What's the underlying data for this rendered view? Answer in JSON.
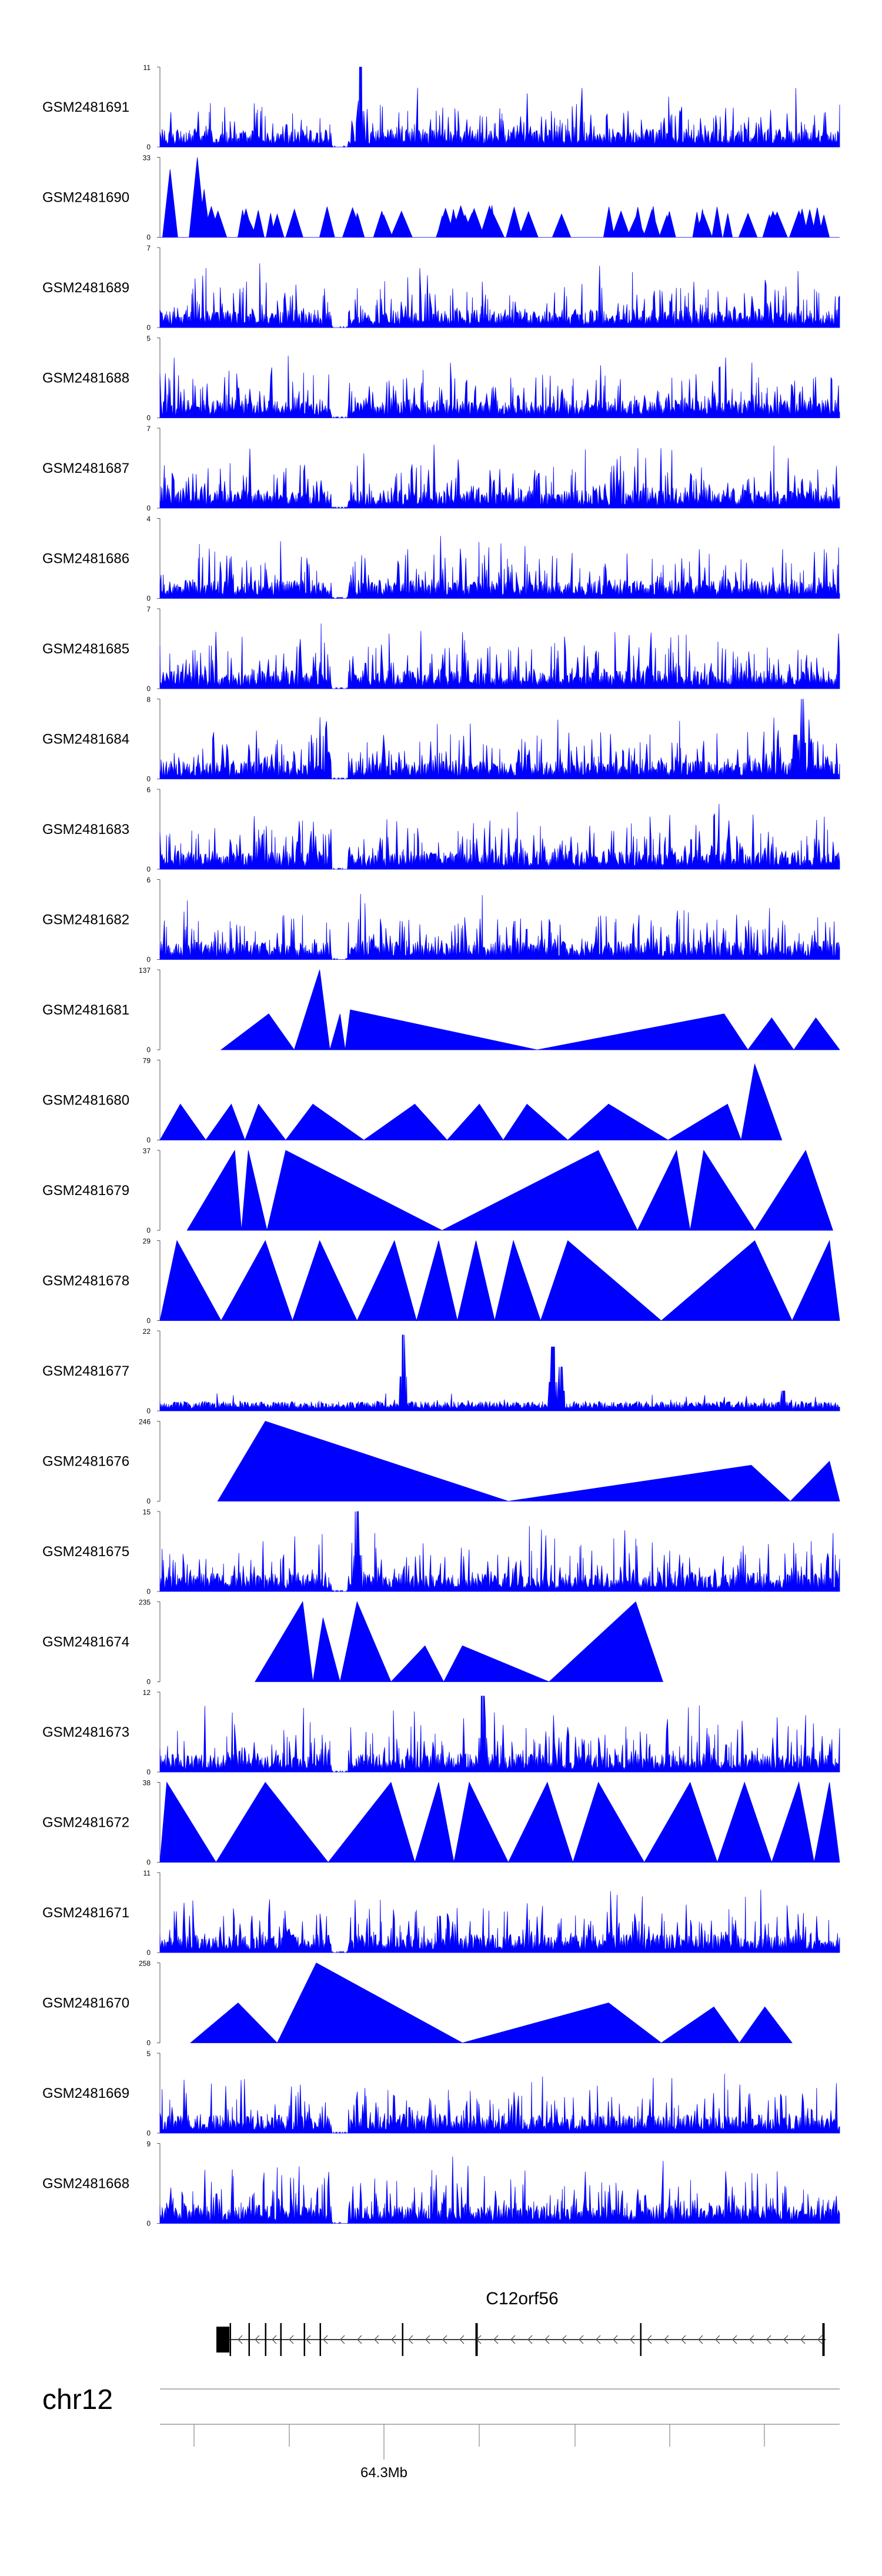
{
  "chart_data": {
    "type": "area",
    "description_free": true,
    "color": "#0000ff",
    "ymin_label": "0",
    "tracks": [
      {
        "name": "GSM2481691",
        "ymax": "11",
        "seed": 101,
        "style": "dense",
        "gap": 0.265,
        "peaks": [
          [
            0.295,
            1.0
          ]
        ]
      },
      {
        "name": "GSM2481690",
        "ymax": "33",
        "seed": 102,
        "style": "sparse",
        "peaks": [
          [
            0.015,
            0.85
          ],
          [
            0.055,
            1.0
          ],
          [
            0.065,
            0.6
          ]
        ]
      },
      {
        "name": "GSM2481689",
        "ymax": "7",
        "seed": 103,
        "style": "dense",
        "gap": 0.265,
        "peaks": []
      },
      {
        "name": "GSM2481688",
        "ymax": "5",
        "seed": 104,
        "style": "dense",
        "gap": 0.265,
        "peaks": []
      },
      {
        "name": "GSM2481687",
        "ymax": "7",
        "seed": 105,
        "style": "dense",
        "gap": 0.265,
        "peaks": []
      },
      {
        "name": "GSM2481686",
        "ymax": "4",
        "seed": 106,
        "style": "dense",
        "gap": 0.265,
        "peaks": []
      },
      {
        "name": "GSM2481685",
        "ymax": "7",
        "seed": 107,
        "style": "dense",
        "gap": 0.265,
        "peaks": []
      },
      {
        "name": "GSM2481684",
        "ymax": "8",
        "seed": 108,
        "style": "dense",
        "gap": 0.265,
        "peaks": [
          [
            0.945,
            1.0
          ],
          [
            0.935,
            0.55
          ]
        ]
      },
      {
        "name": "GSM2481683",
        "ymax": "6",
        "seed": 109,
        "style": "dense",
        "gap": 0.265,
        "peaks": []
      },
      {
        "name": "GSM2481682",
        "ymax": "6",
        "seed": 110,
        "style": "dense",
        "gap": 0.265,
        "peaks": []
      },
      {
        "name": "GSM2481681",
        "ymax": "137",
        "seed": 111,
        "style": "tri",
        "peaks": [
          [
            0.16,
            0.45
          ],
          [
            0.265,
            0.45
          ],
          [
            0.235,
            1.0
          ],
          [
            0.28,
            0.5
          ],
          [
            0.83,
            0.45
          ],
          [
            0.9,
            0.4
          ],
          [
            0.965,
            0.4
          ]
        ]
      },
      {
        "name": "GSM2481680",
        "ymax": "79",
        "seed": 112,
        "style": "tri",
        "peaks": [
          [
            0.03,
            0.45
          ],
          [
            0.105,
            0.45
          ],
          [
            0.145,
            0.45
          ],
          [
            0.225,
            0.45
          ],
          [
            0.375,
            0.45
          ],
          [
            0.47,
            0.45
          ],
          [
            0.54,
            0.45
          ],
          [
            0.66,
            0.45
          ],
          [
            0.835,
            0.45
          ],
          [
            0.875,
            0.95
          ]
        ]
      },
      {
        "name": "GSM2481679",
        "ymax": "37",
        "seed": 113,
        "style": "tri",
        "peaks": [
          [
            0.11,
            1.0
          ],
          [
            0.13,
            1.0
          ],
          [
            0.185,
            1.0
          ],
          [
            0.645,
            1.0
          ],
          [
            0.76,
            1.0
          ],
          [
            0.8,
            1.0
          ],
          [
            0.95,
            1.0
          ]
        ]
      },
      {
        "name": "GSM2481678",
        "ymax": "29",
        "seed": 114,
        "style": "tri",
        "peaks": [
          [
            0.025,
            1.0
          ],
          [
            0.155,
            1.0
          ],
          [
            0.235,
            1.0
          ],
          [
            0.345,
            1.0
          ],
          [
            0.41,
            1.0
          ],
          [
            0.465,
            1.0
          ],
          [
            0.52,
            1.0
          ],
          [
            0.6,
            1.0
          ],
          [
            0.875,
            1.0
          ],
          [
            0.985,
            1.0
          ]
        ]
      },
      {
        "name": "GSM2481677",
        "ymax": "22",
        "seed": 115,
        "style": "dense_low",
        "gap": 0.0,
        "peaks": [
          [
            0.358,
            0.95
          ],
          [
            0.578,
            0.8
          ],
          [
            0.59,
            0.55
          ],
          [
            0.917,
            0.25
          ]
        ]
      },
      {
        "name": "GSM2481676",
        "ymax": "246",
        "seed": 116,
        "style": "tri",
        "peaks": [
          [
            0.155,
            1.0
          ],
          [
            0.87,
            0.45
          ],
          [
            0.985,
            0.5
          ]
        ]
      },
      {
        "name": "GSM2481675",
        "ymax": "15",
        "seed": 117,
        "style": "dense",
        "gap": 0.265,
        "peaks": [
          [
            0.29,
            1.0
          ]
        ]
      },
      {
        "name": "GSM2481674",
        "ymax": "235",
        "seed": 118,
        "style": "tri",
        "peaks": [
          [
            0.21,
            1.0
          ],
          [
            0.24,
            0.8
          ],
          [
            0.29,
            1.0
          ],
          [
            0.39,
            0.45
          ],
          [
            0.445,
            0.45
          ],
          [
            0.7,
            1.0
          ]
        ]
      },
      {
        "name": "GSM2481673",
        "ymax": "12",
        "seed": 119,
        "style": "dense",
        "gap": 0.265,
        "peaks": [
          [
            0.475,
            0.95
          ]
        ]
      },
      {
        "name": "GSM2481672",
        "ymax": "38",
        "seed": 120,
        "style": "tri",
        "peaks": [
          [
            0.01,
            1.0
          ],
          [
            0.155,
            1.0
          ],
          [
            0.34,
            1.0
          ],
          [
            0.41,
            1.0
          ],
          [
            0.455,
            1.0
          ],
          [
            0.57,
            1.0
          ],
          [
            0.645,
            1.0
          ],
          [
            0.78,
            1.0
          ],
          [
            0.86,
            1.0
          ],
          [
            0.94,
            1.0
          ],
          [
            0.985,
            1.0
          ]
        ]
      },
      {
        "name": "GSM2481671",
        "ymax": "11",
        "seed": 121,
        "style": "dense",
        "gap": 0.265,
        "peaks": []
      },
      {
        "name": "GSM2481670",
        "ymax": "258",
        "seed": 122,
        "style": "tri",
        "peaks": [
          [
            0.115,
            0.5
          ],
          [
            0.23,
            1.0
          ],
          [
            0.66,
            0.5
          ],
          [
            0.815,
            0.45
          ],
          [
            0.89,
            0.45
          ]
        ]
      },
      {
        "name": "GSM2481669",
        "ymax": "5",
        "seed": 123,
        "style": "dense",
        "gap": 0.265,
        "peaks": []
      },
      {
        "name": "GSM2481668",
        "ymax": "9",
        "seed": 124,
        "style": "dense",
        "gap": 0.265,
        "peaks": []
      }
    ],
    "gene": {
      "name": "C12orf56",
      "strand": "-"
    },
    "chromosome": "chr12",
    "position_label": "64.3Mb"
  }
}
